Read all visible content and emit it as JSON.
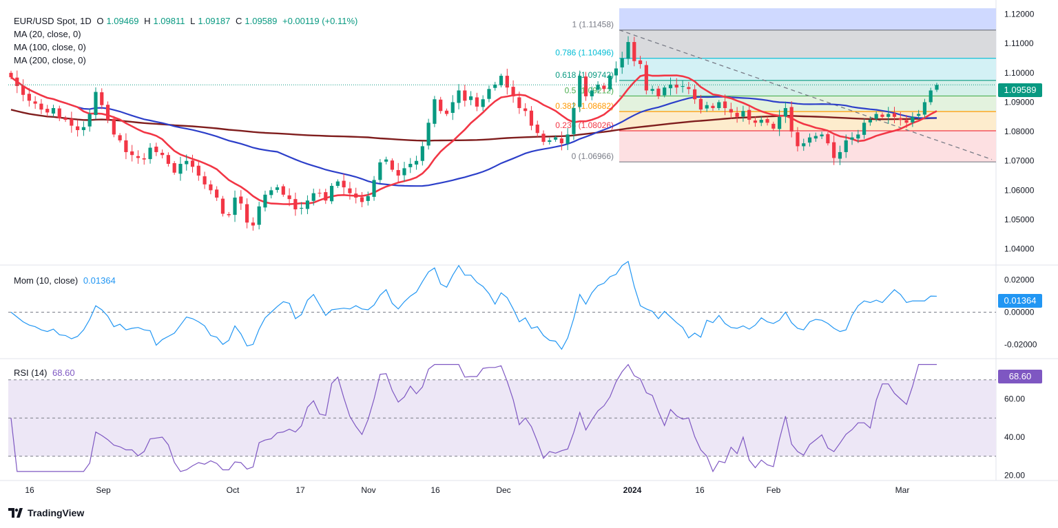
{
  "header": {
    "symbol": "EUR/USD Spot, 1D",
    "open_label": "O",
    "open": "1.09469",
    "high_label": "H",
    "high": "1.09811",
    "low_label": "L",
    "low": "1.09187",
    "close_label": "C",
    "close": "1.09589",
    "change": "+0.00119 (+0.11%)"
  },
  "indicators": {
    "ma1": "MA (20, close, 0)",
    "ma2": "MA (100, close, 0)",
    "ma3": "MA (200, close, 0)",
    "mom_label": "Mom (10, close)",
    "mom_value": "0.01364",
    "rsi_label": "RSI (14)",
    "rsi_value": "68.60"
  },
  "badges": {
    "price": "1.09589",
    "mom": "0.01364",
    "rsi": "68.60"
  },
  "branding": {
    "name": "TradingView"
  },
  "colors": {
    "up": "#089981",
    "down": "#f23645",
    "ma20": "#f23645",
    "ma100": "#2c3fc9",
    "ma200": "#7f1d1d",
    "mom": "#2196f3",
    "rsi": "#7e57c2"
  },
  "chart_data": {
    "type": "candlestick",
    "x_ticks": [
      "16",
      "Sep",
      "Oct",
      "17",
      "Nov",
      "16",
      "Dec",
      "2024",
      "16",
      "Feb",
      "Mar"
    ],
    "price_axis": {
      "ylim": [
        1.035,
        1.122
      ],
      "ticks": [
        "1.12000",
        "1.11000",
        "1.10000",
        "1.09000",
        "1.08000",
        "1.07000",
        "1.06000",
        "1.05000",
        "1.04000"
      ]
    },
    "fibonacci": [
      {
        "ratio": "1",
        "price": "1.11458",
        "color": "#787b86"
      },
      {
        "ratio": "0.786",
        "price": "1.10496",
        "color": "#00bcd4"
      },
      {
        "ratio": "0.618",
        "price": "1.09742",
        "color": "#089981"
      },
      {
        "ratio": "0.5",
        "price": "1.09212",
        "color": "#4caf50"
      },
      {
        "ratio": "0.382",
        "price": "1.08682",
        "color": "#ff9800"
      },
      {
        "ratio": "0.236",
        "price": "1.08026",
        "color": "#f23645"
      },
      {
        "ratio": "0",
        "price": "1.06966",
        "color": "#787b86"
      }
    ],
    "closes": [
      1.0985,
      1.0955,
      1.0925,
      1.0905,
      1.0895,
      1.0875,
      1.0865,
      1.088,
      1.0845,
      1.084,
      1.082,
      1.0805,
      1.0815,
      1.086,
      1.0935,
      1.089,
      1.084,
      1.079,
      1.077,
      1.073,
      1.072,
      1.071,
      1.0705,
      1.0745,
      1.073,
      1.072,
      1.069,
      1.066,
      1.069,
      1.07,
      1.068,
      1.065,
      1.062,
      1.06,
      1.0575,
      1.052,
      1.0515,
      1.0575,
      1.0555,
      1.049,
      1.048,
      1.0545,
      1.0585,
      1.06,
      1.061,
      1.0585,
      1.057,
      1.0535,
      1.054,
      1.0565,
      1.059,
      1.059,
      1.0565,
      1.0615,
      1.063,
      1.061,
      1.059,
      1.0575,
      1.056,
      1.058,
      1.0635,
      1.0695,
      1.0705,
      1.067,
      1.065,
      1.0675,
      1.069,
      1.07,
      1.075,
      1.083,
      1.091,
      1.087,
      1.086,
      1.09,
      1.094,
      1.0905,
      1.092,
      1.0885,
      1.091,
      1.0945,
      1.096,
      1.099,
      1.095,
      1.092,
      1.088,
      1.087,
      1.082,
      1.0795,
      1.0765,
      1.077,
      1.078,
      1.076,
      1.079,
      1.088,
      1.099,
      1.092,
      1.094,
      1.096,
      1.0945,
      1.099,
      1.1015,
      1.105,
      1.1105,
      1.104,
      1.103,
      1.094,
      1.0945,
      1.092,
      1.095,
      1.096,
      1.095,
      1.0955,
      1.0945,
      1.091,
      1.0875,
      1.089,
      1.088,
      1.09,
      1.088,
      1.0865,
      1.085,
      1.087,
      1.084,
      1.083,
      1.084,
      1.083,
      1.081,
      1.085,
      1.088,
      1.08,
      1.075,
      1.076,
      1.078,
      1.0785,
      1.079,
      1.076,
      1.071,
      1.073,
      1.077,
      1.078,
      1.079,
      1.083,
      1.084,
      1.086,
      1.085,
      1.086,
      1.085,
      1.084,
      1.083,
      1.085,
      1.086,
      1.09,
      1.094,
      1.0959
    ],
    "mom_axis": {
      "ylim": [
        -0.028,
        0.028
      ],
      "ticks": [
        "0.02000",
        "0.00000",
        "-0.02000"
      ]
    },
    "rsi_axis": {
      "ylim": [
        18,
        80
      ],
      "ticks": [
        "60.00",
        "40.00",
        "20.00"
      ],
      "bands": [
        30,
        50,
        70
      ]
    }
  }
}
